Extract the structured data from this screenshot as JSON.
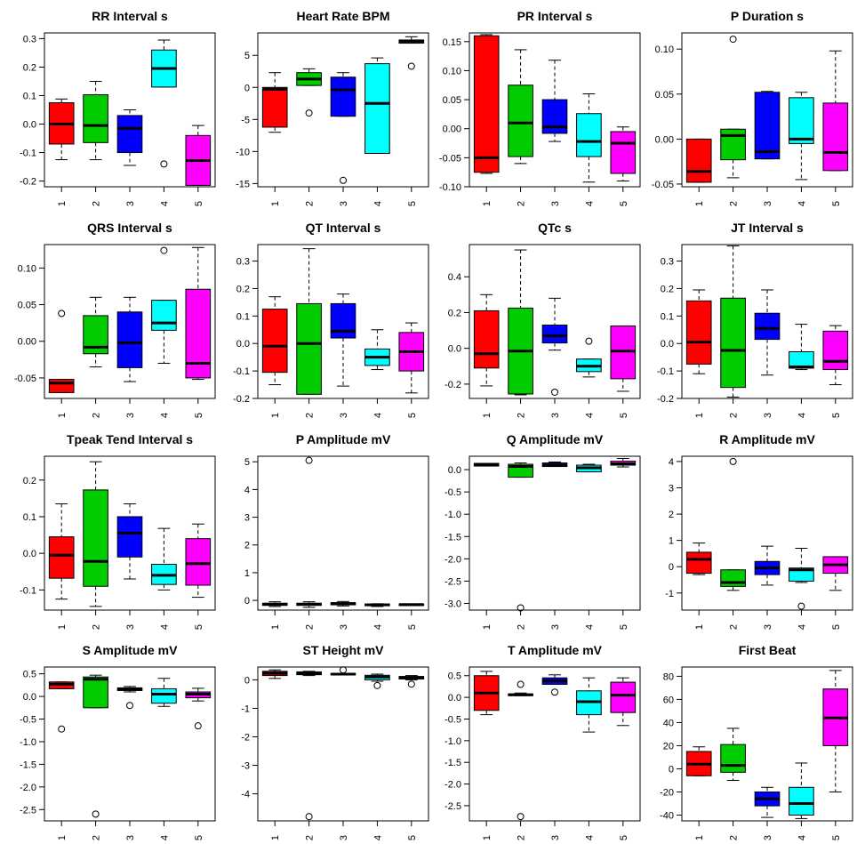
{
  "colors": [
    "#ff0000",
    "#00cc00",
    "#0000ff",
    "#00ffff",
    "#ff00ff"
  ],
  "categories": [
    "1",
    "2",
    "3",
    "4",
    "5"
  ],
  "chart_data": [
    {
      "type": "box",
      "title": "RR Interval s",
      "ylim": [
        -0.22,
        0.32
      ],
      "yticks": [
        -0.2,
        -0.1,
        0.0,
        0.1,
        0.2,
        0.3
      ],
      "ytick_labels": [
        "-0.2",
        "-0.1",
        "0.0",
        "0.1",
        "0.2",
        "0.3"
      ],
      "boxes": [
        {
          "wlo": -0.125,
          "q1": -0.07,
          "med": 0.0,
          "q3": 0.075,
          "whi": 0.088,
          "outliers": []
        },
        {
          "wlo": -0.125,
          "q1": -0.065,
          "med": -0.005,
          "q3": 0.103,
          "whi": 0.15,
          "outliers": []
        },
        {
          "wlo": -0.145,
          "q1": -0.1,
          "med": -0.015,
          "q3": 0.03,
          "whi": 0.05,
          "outliers": []
        },
        {
          "wlo": 0.13,
          "q1": 0.13,
          "med": 0.195,
          "q3": 0.26,
          "whi": 0.295,
          "outliers": [
            -0.14
          ]
        },
        {
          "wlo": -0.215,
          "q1": -0.215,
          "med": -0.128,
          "q3": -0.04,
          "whi": -0.005,
          "outliers": []
        }
      ]
    },
    {
      "type": "box",
      "title": "Heart Rate BPM",
      "ylim": [
        -15.5,
        8.5
      ],
      "yticks": [
        -15,
        -10,
        -5,
        0,
        5
      ],
      "ytick_labels": [
        "-15",
        "-10",
        "-5",
        "0",
        "5"
      ],
      "boxes": [
        {
          "wlo": -7.0,
          "q1": -6.2,
          "med": -0.3,
          "q3": 0.0,
          "whi": 2.3,
          "outliers": []
        },
        {
          "wlo": 0.3,
          "q1": 0.3,
          "med": 1.3,
          "q3": 2.3,
          "whi": 2.9,
          "outliers": [
            -4.0
          ]
        },
        {
          "wlo": -4.5,
          "q1": -4.5,
          "med": -0.4,
          "q3": 1.6,
          "whi": 2.3,
          "outliers": [
            -14.5
          ]
        },
        {
          "wlo": -10.3,
          "q1": -10.3,
          "med": -2.5,
          "q3": 3.7,
          "whi": 4.6,
          "outliers": []
        },
        {
          "wlo": 6.9,
          "q1": 6.9,
          "med": 7.2,
          "q3": 7.4,
          "whi": 7.9,
          "outliers": [
            3.3
          ]
        }
      ]
    },
    {
      "type": "box",
      "title": "PR Interval s",
      "ylim": [
        -0.1,
        0.165
      ],
      "yticks": [
        -0.1,
        -0.05,
        0.0,
        0.05,
        0.1,
        0.15
      ],
      "ytick_labels": [
        "-0.10",
        "-0.05",
        "0.00",
        "0.05",
        "0.10",
        "0.15"
      ],
      "boxes": [
        {
          "wlo": -0.077,
          "q1": -0.075,
          "med": -0.05,
          "q3": 0.16,
          "whi": 0.162,
          "outliers": []
        },
        {
          "wlo": -0.06,
          "q1": -0.048,
          "med": 0.01,
          "q3": 0.075,
          "whi": 0.136,
          "outliers": []
        },
        {
          "wlo": -0.022,
          "q1": -0.008,
          "med": 0.003,
          "q3": 0.05,
          "whi": 0.118,
          "outliers": []
        },
        {
          "wlo": -0.092,
          "q1": -0.048,
          "med": -0.022,
          "q3": 0.026,
          "whi": 0.06,
          "outliers": []
        },
        {
          "wlo": -0.09,
          "q1": -0.077,
          "med": -0.025,
          "q3": -0.005,
          "whi": 0.003,
          "outliers": []
        }
      ]
    },
    {
      "type": "box",
      "title": "P Duration s",
      "ylim": [
        -0.053,
        0.118
      ],
      "yticks": [
        -0.05,
        0.0,
        0.05,
        0.1
      ],
      "ytick_labels": [
        "-0.05",
        "0.00",
        "0.05",
        "0.10"
      ],
      "boxes": [
        {
          "wlo": -0.048,
          "q1": -0.048,
          "med": -0.036,
          "q3": 0.0,
          "whi": 0.0,
          "outliers": []
        },
        {
          "wlo": -0.043,
          "q1": -0.023,
          "med": 0.004,
          "q3": 0.011,
          "whi": 0.011,
          "outliers": [
            0.111
          ]
        },
        {
          "wlo": -0.022,
          "q1": -0.022,
          "med": -0.014,
          "q3": 0.052,
          "whi": 0.053,
          "outliers": []
        },
        {
          "wlo": -0.045,
          "q1": -0.005,
          "med": 0.0,
          "q3": 0.046,
          "whi": 0.052,
          "outliers": []
        },
        {
          "wlo": -0.035,
          "q1": -0.035,
          "med": -0.015,
          "q3": 0.04,
          "whi": 0.098,
          "outliers": []
        }
      ]
    },
    {
      "type": "box",
      "title": "QRS Interval s",
      "ylim": [
        -0.078,
        0.132
      ],
      "yticks": [
        -0.05,
        0.0,
        0.05,
        0.1
      ],
      "ytick_labels": [
        "-0.05",
        "0.00",
        "0.05",
        "0.10"
      ],
      "boxes": [
        {
          "wlo": -0.07,
          "q1": -0.07,
          "med": -0.057,
          "q3": -0.052,
          "whi": -0.052,
          "outliers": [
            0.038
          ]
        },
        {
          "wlo": -0.035,
          "q1": -0.017,
          "med": -0.008,
          "q3": 0.035,
          "whi": 0.06,
          "outliers": []
        },
        {
          "wlo": -0.055,
          "q1": -0.036,
          "med": -0.002,
          "q3": 0.04,
          "whi": 0.06,
          "outliers": []
        },
        {
          "wlo": -0.03,
          "q1": 0.015,
          "med": 0.025,
          "q3": 0.056,
          "whi": 0.056,
          "outliers": [
            0.124
          ]
        },
        {
          "wlo": -0.052,
          "q1": -0.05,
          "med": -0.03,
          "q3": 0.071,
          "whi": 0.128,
          "outliers": []
        }
      ]
    },
    {
      "type": "box",
      "title": "QT Interval s",
      "ylim": [
        -0.2,
        0.36
      ],
      "yticks": [
        -0.2,
        -0.1,
        0.0,
        0.1,
        0.2,
        0.3
      ],
      "ytick_labels": [
        "-0.2",
        "-0.1",
        "0.0",
        "0.1",
        "0.2",
        "0.3"
      ],
      "boxes": [
        {
          "wlo": -0.15,
          "q1": -0.105,
          "med": -0.01,
          "q3": 0.125,
          "whi": 0.17,
          "outliers": []
        },
        {
          "wlo": -0.185,
          "q1": -0.185,
          "med": 0.0,
          "q3": 0.145,
          "whi": 0.345,
          "outliers": []
        },
        {
          "wlo": -0.155,
          "q1": 0.02,
          "med": 0.045,
          "q3": 0.145,
          "whi": 0.18,
          "outliers": []
        },
        {
          "wlo": -0.095,
          "q1": -0.08,
          "med": -0.05,
          "q3": -0.02,
          "whi": 0.05,
          "outliers": []
        },
        {
          "wlo": -0.18,
          "q1": -0.1,
          "med": -0.03,
          "q3": 0.04,
          "whi": 0.075,
          "outliers": []
        }
      ]
    },
    {
      "type": "box",
      "title": "QTc s",
      "ylim": [
        -0.28,
        0.58
      ],
      "yticks": [
        -0.2,
        0.0,
        0.2,
        0.4
      ],
      "ytick_labels": [
        "-0.2",
        "0.0",
        "0.2",
        "0.4"
      ],
      "boxes": [
        {
          "wlo": -0.21,
          "q1": -0.11,
          "med": -0.03,
          "q3": 0.21,
          "whi": 0.3,
          "outliers": []
        },
        {
          "wlo": -0.26,
          "q1": -0.255,
          "med": -0.015,
          "q3": 0.225,
          "whi": 0.55,
          "outliers": []
        },
        {
          "wlo": -0.01,
          "q1": 0.03,
          "med": 0.07,
          "q3": 0.13,
          "whi": 0.28,
          "outliers": [
            -0.245
          ]
        },
        {
          "wlo": -0.16,
          "q1": -0.13,
          "med": -0.1,
          "q3": -0.06,
          "whi": -0.06,
          "outliers": [
            0.04
          ]
        },
        {
          "wlo": -0.24,
          "q1": -0.17,
          "med": -0.015,
          "q3": 0.125,
          "whi": 0.125,
          "outliers": []
        }
      ]
    },
    {
      "type": "box",
      "title": "JT Interval s",
      "ylim": [
        -0.2,
        0.36
      ],
      "yticks": [
        -0.2,
        -0.1,
        0.0,
        0.1,
        0.2,
        0.3
      ],
      "ytick_labels": [
        "-0.2",
        "-0.1",
        "0.0",
        "0.1",
        "0.2",
        "0.3"
      ],
      "boxes": [
        {
          "wlo": -0.11,
          "q1": -0.075,
          "med": 0.005,
          "q3": 0.155,
          "whi": 0.195,
          "outliers": []
        },
        {
          "wlo": -0.195,
          "q1": -0.16,
          "med": -0.025,
          "q3": 0.165,
          "whi": 0.355,
          "outliers": []
        },
        {
          "wlo": -0.115,
          "q1": 0.015,
          "med": 0.055,
          "q3": 0.11,
          "whi": 0.195,
          "outliers": []
        },
        {
          "wlo": -0.095,
          "q1": -0.09,
          "med": -0.085,
          "q3": -0.03,
          "whi": 0.07,
          "outliers": []
        },
        {
          "wlo": -0.15,
          "q1": -0.095,
          "med": -0.065,
          "q3": 0.045,
          "whi": 0.065,
          "outliers": []
        }
      ]
    },
    {
      "type": "box",
      "title": "Tpeak Tend Interval s",
      "ylim": [
        -0.155,
        0.265
      ],
      "yticks": [
        -0.1,
        0.0,
        0.1,
        0.2
      ],
      "ytick_labels": [
        "-0.1",
        "0.0",
        "0.1",
        "0.2"
      ],
      "boxes": [
        {
          "wlo": -0.125,
          "q1": -0.068,
          "med": -0.005,
          "q3": 0.045,
          "whi": 0.135,
          "outliers": []
        },
        {
          "wlo": -0.145,
          "q1": -0.09,
          "med": -0.022,
          "q3": 0.173,
          "whi": 0.25,
          "outliers": []
        },
        {
          "wlo": -0.07,
          "q1": -0.01,
          "med": 0.055,
          "q3": 0.1,
          "whi": 0.135,
          "outliers": []
        },
        {
          "wlo": -0.1,
          "q1": -0.085,
          "med": -0.06,
          "q3": -0.03,
          "whi": 0.068,
          "outliers": []
        },
        {
          "wlo": -0.12,
          "q1": -0.087,
          "med": -0.028,
          "q3": 0.04,
          "whi": 0.08,
          "outliers": []
        }
      ]
    },
    {
      "type": "box",
      "title": "P Amplitude mV",
      "ylim": [
        -0.35,
        5.2
      ],
      "yticks": [
        0,
        1,
        2,
        3,
        4,
        5
      ],
      "ytick_labels": [
        "0",
        "1",
        "2",
        "3",
        "4",
        "5"
      ],
      "boxes": [
        {
          "wlo": -0.22,
          "q1": -0.18,
          "med": -0.14,
          "q3": -0.1,
          "whi": -0.05,
          "outliers": []
        },
        {
          "wlo": -0.25,
          "q1": -0.18,
          "med": -0.14,
          "q3": -0.1,
          "whi": -0.05,
          "outliers": [
            5.05
          ]
        },
        {
          "wlo": -0.2,
          "q1": -0.16,
          "med": -0.12,
          "q3": -0.08,
          "whi": -0.04,
          "outliers": []
        },
        {
          "wlo": -0.22,
          "q1": -0.19,
          "med": -0.16,
          "q3": -0.13,
          "whi": -0.12,
          "outliers": []
        },
        {
          "wlo": -0.19,
          "q1": -0.17,
          "med": -0.15,
          "q3": -0.14,
          "whi": -0.13,
          "outliers": []
        }
      ]
    },
    {
      "type": "box",
      "title": "Q Amplitude mV",
      "ylim": [
        -3.15,
        0.3
      ],
      "yticks": [
        -3.0,
        -2.5,
        -2.0,
        -1.5,
        -1.0,
        -0.5,
        0.0
      ],
      "ytick_labels": [
        "-3.0",
        "-2.5",
        "-2.0",
        "-1.5",
        "-1.0",
        "-0.5",
        "0.0"
      ],
      "boxes": [
        {
          "wlo": 0.08,
          "q1": 0.08,
          "med": 0.11,
          "q3": 0.14,
          "whi": 0.14,
          "outliers": []
        },
        {
          "wlo": -0.17,
          "q1": -0.17,
          "med": 0.07,
          "q3": 0.12,
          "whi": 0.15,
          "outliers": [
            -3.1
          ]
        },
        {
          "wlo": 0.07,
          "q1": 0.07,
          "med": 0.1,
          "q3": 0.15,
          "whi": 0.17,
          "outliers": []
        },
        {
          "wlo": -0.05,
          "q1": -0.05,
          "med": 0.04,
          "q3": 0.1,
          "whi": 0.12,
          "outliers": []
        },
        {
          "wlo": 0.06,
          "q1": 0.1,
          "med": 0.13,
          "q3": 0.19,
          "whi": 0.25,
          "outliers": []
        }
      ]
    },
    {
      "type": "box",
      "title": "R Amplitude mV",
      "ylim": [
        -1.65,
        4.2
      ],
      "yticks": [
        -1,
        0,
        1,
        2,
        3,
        4
      ],
      "ytick_labels": [
        "-1",
        "0",
        "1",
        "2",
        "3",
        "4"
      ],
      "boxes": [
        {
          "wlo": -0.3,
          "q1": -0.25,
          "med": 0.28,
          "q3": 0.55,
          "whi": 0.9,
          "outliers": []
        },
        {
          "wlo": -0.9,
          "q1": -0.75,
          "med": -0.6,
          "q3": -0.12,
          "whi": -0.12,
          "outliers": [
            4.0
          ]
        },
        {
          "wlo": -0.7,
          "q1": -0.3,
          "med": -0.05,
          "q3": 0.2,
          "whi": 0.78,
          "outliers": []
        },
        {
          "wlo": -0.6,
          "q1": -0.55,
          "med": -0.12,
          "q3": -0.05,
          "whi": 0.7,
          "outliers": [
            -1.5
          ]
        },
        {
          "wlo": -0.9,
          "q1": -0.25,
          "med": 0.07,
          "q3": 0.38,
          "whi": 0.38,
          "outliers": []
        }
      ]
    },
    {
      "type": "box",
      "title": "S Amplitude mV",
      "ylim": [
        -2.75,
        0.65
      ],
      "yticks": [
        -2.5,
        -2.0,
        -1.5,
        -1.0,
        -0.5,
        0.0,
        0.5
      ],
      "ytick_labels": [
        "-2.5",
        "-2.0",
        "-1.5",
        "-1.0",
        "-0.5",
        "0.0",
        "0.5"
      ],
      "boxes": [
        {
          "wlo": 0.17,
          "q1": 0.17,
          "med": 0.27,
          "q3": 0.32,
          "whi": 0.32,
          "outliers": [
            -0.72
          ]
        },
        {
          "wlo": -0.25,
          "q1": -0.25,
          "med": 0.38,
          "q3": 0.43,
          "whi": 0.47,
          "outliers": [
            -2.6
          ]
        },
        {
          "wlo": 0.1,
          "q1": 0.13,
          "med": 0.16,
          "q3": 0.19,
          "whi": 0.22,
          "outliers": [
            -0.2
          ]
        },
        {
          "wlo": -0.22,
          "q1": -0.15,
          "med": 0.05,
          "q3": 0.17,
          "whi": 0.4,
          "outliers": []
        },
        {
          "wlo": -0.1,
          "q1": -0.03,
          "med": 0.05,
          "q3": 0.1,
          "whi": 0.18,
          "outliers": [
            -0.65
          ]
        }
      ]
    },
    {
      "type": "box",
      "title": "ST Height mV",
      "ylim": [
        -4.95,
        0.45
      ],
      "yticks": [
        -4,
        -3,
        -2,
        -1,
        0
      ],
      "ytick_labels": [
        "-4",
        "-3",
        "-2",
        "-1",
        "0"
      ],
      "boxes": [
        {
          "wlo": 0.05,
          "q1": 0.15,
          "med": 0.23,
          "q3": 0.3,
          "whi": 0.35,
          "outliers": []
        },
        {
          "wlo": 0.15,
          "q1": 0.18,
          "med": 0.22,
          "q3": 0.28,
          "whi": 0.3,
          "outliers": [
            -4.8
          ]
        },
        {
          "wlo": 0.18,
          "q1": 0.18,
          "med": 0.2,
          "q3": 0.22,
          "whi": 0.22,
          "outliers": [
            0.35
          ]
        },
        {
          "wlo": -0.05,
          "q1": 0.0,
          "med": 0.1,
          "q3": 0.16,
          "whi": 0.2,
          "outliers": [
            -0.2
          ]
        },
        {
          "wlo": 0.0,
          "q1": 0.03,
          "med": 0.07,
          "q3": 0.12,
          "whi": 0.15,
          "outliers": [
            -0.15
          ]
        }
      ]
    },
    {
      "type": "box",
      "title": "T Amplitude mV",
      "ylim": [
        -2.85,
        0.7
      ],
      "yticks": [
        -2.5,
        -2.0,
        -1.5,
        -1.0,
        -0.5,
        0.0,
        0.5
      ],
      "ytick_labels": [
        "-2.5",
        "-2.0",
        "-1.5",
        "-1.0",
        "-0.5",
        "0.0",
        "0.5"
      ],
      "boxes": [
        {
          "wlo": -0.4,
          "q1": -0.3,
          "med": 0.1,
          "q3": 0.5,
          "whi": 0.6,
          "outliers": []
        },
        {
          "wlo": 0.04,
          "q1": 0.04,
          "med": 0.06,
          "q3": 0.08,
          "whi": 0.1,
          "outliers": [
            0.3,
            -2.75
          ]
        },
        {
          "wlo": 0.3,
          "q1": 0.3,
          "med": 0.38,
          "q3": 0.45,
          "whi": 0.52,
          "outliers": [
            0.12
          ]
        },
        {
          "wlo": -0.8,
          "q1": -0.4,
          "med": -0.1,
          "q3": 0.15,
          "whi": 0.45,
          "outliers": []
        },
        {
          "wlo": -0.65,
          "q1": -0.35,
          "med": 0.05,
          "q3": 0.35,
          "whi": 0.45,
          "outliers": []
        }
      ]
    },
    {
      "type": "box",
      "title": "First Beat",
      "ylim": [
        -45,
        88
      ],
      "yticks": [
        -40,
        -20,
        0,
        20,
        40,
        60,
        80
      ],
      "ytick_labels": [
        "-40",
        "-20",
        "0",
        "20",
        "40",
        "60",
        "80"
      ],
      "boxes": [
        {
          "wlo": -6,
          "q1": -6,
          "med": 4,
          "q3": 15,
          "whi": 19,
          "outliers": []
        },
        {
          "wlo": -10,
          "q1": -3,
          "med": 3,
          "q3": 21,
          "whi": 35,
          "outliers": []
        },
        {
          "wlo": -42,
          "q1": -32,
          "med": -26,
          "q3": -20,
          "whi": -16,
          "outliers": []
        },
        {
          "wlo": -43,
          "q1": -40,
          "med": -30,
          "q3": -16,
          "whi": 5,
          "outliers": []
        },
        {
          "wlo": -20,
          "q1": 20,
          "med": 44,
          "q3": 69,
          "whi": 85,
          "outliers": []
        }
      ]
    }
  ]
}
